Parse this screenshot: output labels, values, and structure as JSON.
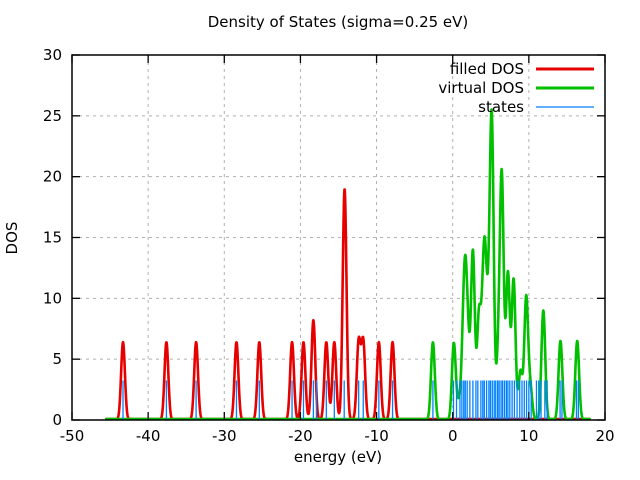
{
  "title": "Density of States (sigma=0.25 eV)",
  "chart_data": {
    "type": "line",
    "title": "Density of States (sigma=0.25 eV)",
    "xlabel": "energy (eV)",
    "ylabel": "DOS",
    "xlim": [
      -50,
      20
    ],
    "ylim": [
      0,
      30
    ],
    "x_ticks": [
      -50,
      -40,
      -30,
      -20,
      -10,
      0,
      10,
      20
    ],
    "y_ticks": [
      0,
      5,
      10,
      15,
      20,
      25,
      30
    ],
    "grid": true,
    "legend_position": "top-right-inside",
    "curve_domain": [
      -45.5,
      18.0
    ],
    "gaussian_sigma_eV": 0.25,
    "colors": {
      "filled": "#e60000",
      "virtual": "#00c000",
      "states": "#0080ff",
      "grid": "#b0b0b0",
      "border": "#000000"
    },
    "series": [
      {
        "name": "filled DOS",
        "style": "gaussian-sum",
        "color": "#e60000",
        "line_width": 2.6,
        "peaks": [
          [
            -43.3,
            6.4
          ],
          [
            -37.6,
            6.4
          ],
          [
            -33.7,
            6.4
          ],
          [
            -28.4,
            6.4
          ],
          [
            -25.4,
            6.4
          ],
          [
            -21.1,
            6.4
          ],
          [
            -19.6,
            6.4
          ],
          [
            -18.3,
            8.2
          ],
          [
            -16.6,
            6.4
          ],
          [
            -15.55,
            6.4
          ],
          [
            -14.2,
            19.0
          ],
          [
            -12.35,
            6.4
          ],
          [
            -11.75,
            6.4
          ],
          [
            -9.7,
            6.4
          ],
          [
            -7.9,
            6.4
          ]
        ]
      },
      {
        "name": "virtual DOS",
        "style": "gaussian-sum",
        "color": "#00c000",
        "line_width": 2.6,
        "peaks": [
          [
            -2.6,
            6.4
          ],
          [
            0.15,
            6.3
          ],
          [
            0.8,
            1.2
          ],
          [
            1.35,
            4.5
          ],
          [
            1.65,
            9.5
          ],
          [
            2.0,
            5.0
          ],
          [
            2.65,
            13.8
          ],
          [
            3.45,
            8.5
          ],
          [
            4.0,
            8.0
          ],
          [
            4.3,
            9.5
          ],
          [
            4.8,
            7.0
          ],
          [
            5.15,
            22.5
          ],
          [
            6.0,
            5.0
          ],
          [
            6.45,
            19.5
          ],
          [
            7.25,
            12.0
          ],
          [
            8.0,
            11.5
          ],
          [
            8.9,
            4.0
          ],
          [
            9.65,
            10.0
          ],
          [
            10.2,
            2.5
          ],
          [
            11.9,
            9.0
          ],
          [
            14.15,
            6.5
          ],
          [
            16.35,
            6.5
          ]
        ]
      },
      {
        "name": "states",
        "style": "impulses",
        "color": "#0080ff",
        "line_width": 1.3,
        "height": 3.25,
        "positions": [
          -43.3,
          -37.6,
          -33.7,
          -28.4,
          -25.4,
          -21.1,
          -19.6,
          -18.3,
          -17.9,
          -16.6,
          -15.55,
          -14.25,
          -12.35,
          -11.75,
          -9.7,
          -7.9,
          -2.6,
          0.1,
          0.5,
          0.95,
          1.2,
          1.45,
          1.65,
          1.9,
          2.25,
          2.65,
          3.05,
          3.3,
          3.7,
          3.95,
          4.15,
          4.45,
          4.75,
          4.95,
          5.2,
          5.45,
          5.65,
          5.9,
          6.1,
          6.35,
          6.55,
          6.8,
          7.05,
          7.25,
          7.5,
          7.8,
          8.1,
          8.45,
          8.8,
          9.1,
          9.4,
          9.7,
          10.0,
          10.3,
          11.0,
          11.3,
          11.6,
          12.1,
          12.4,
          14.1,
          14.35,
          16.25,
          16.5
        ]
      }
    ]
  }
}
